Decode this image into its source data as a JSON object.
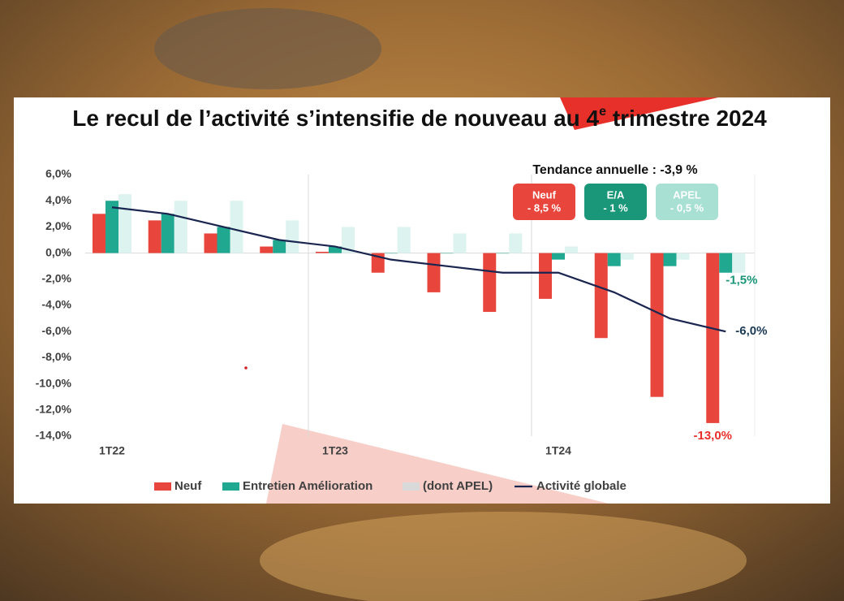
{
  "chart_data": {
    "type": "bar",
    "title": [
      "Le recul de l’activité s’intensifie de nouveau au 4",
      "e",
      " trimestre 2024"
    ],
    "categories": [
      "1T22",
      null,
      null,
      null,
      "1T23",
      null,
      null,
      null,
      "1T24",
      null,
      null,
      null
    ],
    "ylim": [
      -14,
      6
    ],
    "yticks": [
      {
        "value": 6,
        "label": "6,0%"
      },
      {
        "value": 4,
        "label": "4,0%"
      },
      {
        "value": 2,
        "label": "2,0%"
      },
      {
        "value": 0,
        "label": "0,0%"
      },
      {
        "value": -2,
        "label": "-2,0%"
      },
      {
        "value": -4,
        "label": "-4,0%"
      },
      {
        "value": -6,
        "label": "-6,0%"
      },
      {
        "value": -8,
        "label": "-8,0%"
      },
      {
        "value": -10,
        "label": "-10,0%"
      },
      {
        "value": -12,
        "label": "-12,0%"
      },
      {
        "value": -14,
        "label": "-14,0%"
      }
    ],
    "series": [
      {
        "name": "Neuf",
        "type": "bar",
        "color": "#e8453c",
        "values": [
          3,
          2.5,
          1.5,
          0.5,
          0.1,
          -1.5,
          -3,
          -4.5,
          -3.5,
          -6.5,
          -11,
          -13
        ],
        "value_labels": [
          null,
          null,
          null,
          null,
          null,
          null,
          null,
          null,
          null,
          null,
          null,
          "-13,0%"
        ]
      },
      {
        "name": "Entretien Amélioration",
        "type": "bar",
        "color": "#21a891",
        "values": [
          4,
          3,
          2,
          1,
          0.5,
          0,
          0,
          0,
          -0.5,
          -1,
          -1,
          -1.5
        ],
        "value_labels": [
          null,
          null,
          null,
          null,
          null,
          null,
          null,
          null,
          null,
          null,
          null,
          "-1,5%"
        ]
      },
      {
        "name": "(dont APEL)",
        "type": "bar",
        "color": "#dcf3ef",
        "values": [
          4.5,
          4,
          4,
          2.5,
          2,
          2,
          1.5,
          1.5,
          0.5,
          -0.5,
          -0.5,
          -1.5
        ]
      },
      {
        "name": "Activité globale",
        "type": "line",
        "color": "#1a2550",
        "values": [
          3.5,
          3,
          2,
          1,
          0.5,
          -0.5,
          -1,
          -1.5,
          -1.5,
          -3,
          -5,
          -6
        ],
        "value_labels": [
          null,
          null,
          null,
          null,
          null,
          null,
          null,
          null,
          null,
          null,
          null,
          "-6,0%"
        ]
      }
    ],
    "trend": {
      "title": "Tendance annuelle : -3,9 %",
      "badges": [
        {
          "name": "Neuf",
          "value": "- 8,5 %",
          "color": "#e8453c"
        },
        {
          "name": "E/A",
          "value": "- 1 %",
          "color": "#1a9678"
        },
        {
          "name": "APEL",
          "value": "- 0,5 %",
          "color": "#a8e0d3"
        }
      ]
    }
  }
}
